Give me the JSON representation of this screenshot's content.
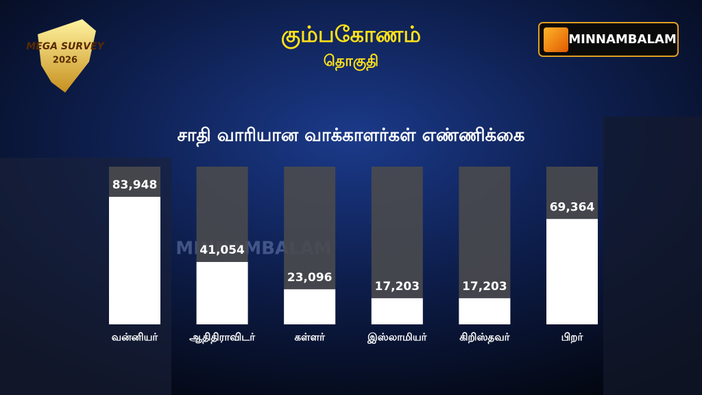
{
  "badge": {
    "line1": "MEGA SURVEY",
    "line2": "2026"
  },
  "logo": {
    "text": "MINNAMBALAM"
  },
  "watermark": "MINNAMBALAM",
  "chart_data": {
    "type": "bar",
    "title": "கும்பகோணம்",
    "subtitle": "தொகுதி",
    "heading": "சாதி வாரியான வாக்காளர்கள்  எண்ணிக்கை",
    "categories": [
      "வன்னியர்",
      "ஆதிதிராவிடர்",
      "கள்ளர்",
      "இஸ்லாமியர்",
      "கிறிஸ்தவர்",
      "பிறர்"
    ],
    "values": [
      83948,
      41054,
      23096,
      17203,
      17203,
      69364
    ],
    "value_labels": [
      "83,948",
      "41,054",
      "23,096",
      "17,203",
      "17,203",
      "69,364"
    ],
    "color": "#ffffff"
  }
}
